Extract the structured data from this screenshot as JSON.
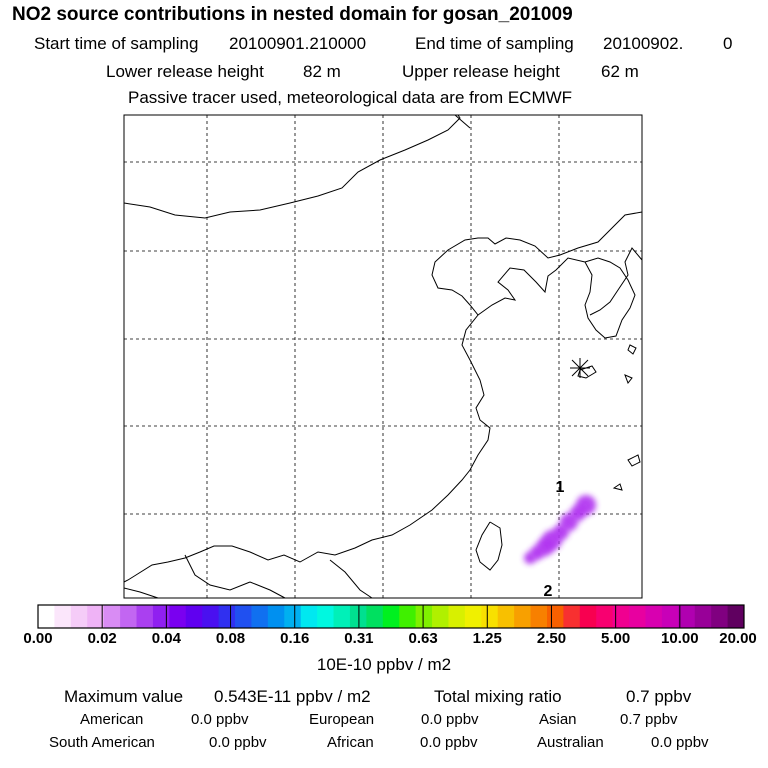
{
  "header": {
    "title": "NO2 source contributions in nested domain for gosan_201009",
    "start_label": "Start time of sampling",
    "start_value": "20100901.210000",
    "end_label": "End time of sampling",
    "end_value": "20100902.",
    "end_trailing": "0",
    "lower_label": "Lower release height",
    "lower_value": "82 m",
    "upper_label": "Upper release height",
    "upper_value": "62 m",
    "note": "Passive tracer used, meteorological data are from ECMWF"
  },
  "map": {
    "marker_labels": [
      "1",
      "2"
    ],
    "station_symbol": "station-star",
    "plume_color": "#b030f0"
  },
  "colorbar": {
    "ticks": [
      "0.00",
      "0.02",
      "0.04",
      "0.08",
      "0.16",
      "0.31",
      "0.63",
      "1.25",
      "2.50",
      "5.00",
      "10.00",
      "20.00"
    ],
    "colors": [
      "#ffffff",
      "#fbe6fb",
      "#f5ccf8",
      "#efb3f6",
      "#d98cf4",
      "#c266f2",
      "#aa40f0",
      "#9020f0",
      "#7a00f0",
      "#6000f0",
      "#4a10f0",
      "#3030f0",
      "#2050f0",
      "#1070f0",
      "#0090f0",
      "#00b0f0",
      "#00e8f0",
      "#00f8e0",
      "#00f0b8",
      "#00e090",
      "#00e060",
      "#00f020",
      "#40f000",
      "#80f000",
      "#b0f000",
      "#d8f000",
      "#f0f000",
      "#f8e000",
      "#f8c000",
      "#f8a000",
      "#f88000",
      "#f86000",
      "#f83030",
      "#f80050",
      "#f80070",
      "#f00090",
      "#e800a0",
      "#d800b0",
      "#c800b8",
      "#b000b0",
      "#980098",
      "#800080",
      "#600060"
    ],
    "units": "10E-10 ppbv / m2"
  },
  "summary": {
    "max_label": "Maximum value",
    "max_value": "0.543E-11 ppbv / m2",
    "total_label": "Total mixing ratio",
    "total_value": "0.7 ppbv",
    "regions": [
      {
        "name": "American",
        "value": "0.0 ppbv"
      },
      {
        "name": "European",
        "value": "0.0 ppbv"
      },
      {
        "name": "Asian",
        "value": "0.7 ppbv"
      },
      {
        "name": "South American",
        "value": "0.0 ppbv"
      },
      {
        "name": "African",
        "value": "0.0 ppbv"
      },
      {
        "name": "Australian",
        "value": "0.0 ppbv"
      }
    ]
  }
}
